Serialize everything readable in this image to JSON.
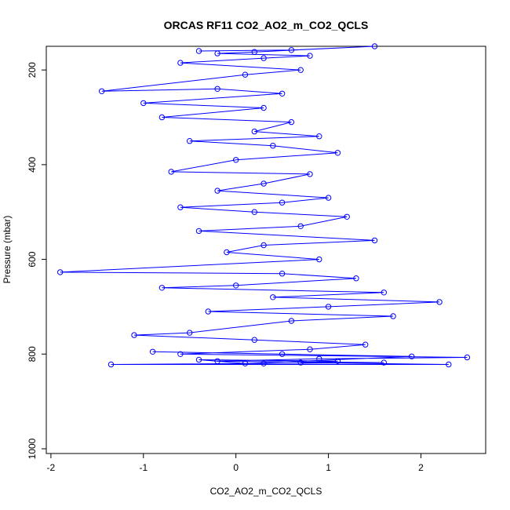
{
  "chart_data": {
    "type": "scatter",
    "title": "ORCAS RF11 CO2_AO2_m_CO2_QCLS",
    "xlabel": "CO2_AO2_m_CO2_QCLS",
    "ylabel": "Pressure (mbar)",
    "xlim": [
      -2.05,
      2.7
    ],
    "ylim": [
      1010,
      150
    ],
    "y_reversed": true,
    "x_ticks": [
      -2,
      -1,
      0,
      1,
      2
    ],
    "y_ticks": [
      200,
      400,
      600,
      800,
      1000
    ],
    "x_tick_labels": [
      "-2",
      "-1",
      "0",
      "1",
      "2"
    ],
    "y_tick_labels": [
      "200",
      "400",
      "600",
      "800",
      "1000"
    ],
    "series_color": "#0000ff",
    "marker": "open-circle",
    "connected": true,
    "points": [
      [
        -0.4,
        160
      ],
      [
        0.6,
        158
      ],
      [
        1.5,
        150
      ],
      [
        0.2,
        162
      ],
      [
        -0.2,
        165
      ],
      [
        0.8,
        170
      ],
      [
        0.3,
        175
      ],
      [
        -0.6,
        185
      ],
      [
        0.7,
        200
      ],
      [
        0.1,
        210
      ],
      [
        -1.45,
        245
      ],
      [
        -0.2,
        240
      ],
      [
        0.5,
        250
      ],
      [
        -1.0,
        270
      ],
      [
        0.3,
        280
      ],
      [
        -0.8,
        300
      ],
      [
        0.6,
        310
      ],
      [
        0.2,
        330
      ],
      [
        0.9,
        340
      ],
      [
        -0.5,
        350
      ],
      [
        0.4,
        360
      ],
      [
        1.1,
        375
      ],
      [
        0.0,
        390
      ],
      [
        -0.7,
        415
      ],
      [
        0.8,
        420
      ],
      [
        0.3,
        440
      ],
      [
        -0.2,
        455
      ],
      [
        1.0,
        470
      ],
      [
        0.5,
        480
      ],
      [
        -0.6,
        490
      ],
      [
        0.2,
        500
      ],
      [
        1.2,
        510
      ],
      [
        0.7,
        530
      ],
      [
        -0.4,
        540
      ],
      [
        1.5,
        560
      ],
      [
        0.3,
        570
      ],
      [
        -0.1,
        585
      ],
      [
        0.9,
        600
      ],
      [
        -1.9,
        627
      ],
      [
        0.5,
        630
      ],
      [
        1.3,
        640
      ],
      [
        0.0,
        655
      ],
      [
        -0.8,
        660
      ],
      [
        1.6,
        670
      ],
      [
        0.4,
        680
      ],
      [
        2.2,
        690
      ],
      [
        1.0,
        700
      ],
      [
        -0.3,
        710
      ],
      [
        1.7,
        720
      ],
      [
        0.6,
        730
      ],
      [
        -0.5,
        755
      ],
      [
        -1.1,
        760
      ],
      [
        0.2,
        770
      ],
      [
        1.4,
        780
      ],
      [
        0.8,
        790
      ],
      [
        -0.6,
        800
      ],
      [
        2.5,
        807
      ],
      [
        0.9,
        810
      ],
      [
        -0.2,
        815
      ],
      [
        1.6,
        818
      ],
      [
        0.3,
        820
      ],
      [
        -1.35,
        822
      ],
      [
        2.3,
        822
      ],
      [
        0.7,
        818
      ],
      [
        1.1,
        815
      ],
      [
        -0.4,
        812
      ],
      [
        0.1,
        820
      ],
      [
        1.9,
        805
      ],
      [
        0.5,
        800
      ],
      [
        -0.9,
        795
      ]
    ]
  }
}
